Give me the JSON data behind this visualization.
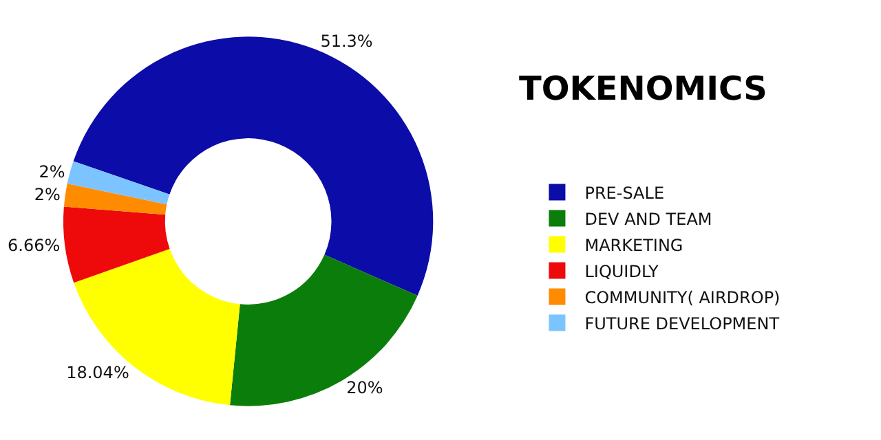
{
  "chart_data": {
    "type": "donut",
    "title": "TOKENOMICS",
    "categories": [
      "PRE-SALE",
      "DEV AND TEAM",
      "MARKETING",
      "LIQUIDLY",
      "COMMUNITY( AIRDROP)",
      "FUTURE DEVELOPMENT"
    ],
    "values": [
      51.3,
      20,
      18.04,
      6.66,
      2,
      2
    ],
    "value_labels": [
      "51.3%",
      "20%",
      "18.04%",
      "6.66%",
      "2%",
      "2%"
    ],
    "colors": [
      "#0c0ca8",
      "#0b7d0b",
      "#ffff00",
      "#ee0a0a",
      "#ff8c00",
      "#7cc4ff"
    ],
    "legend": "right"
  }
}
